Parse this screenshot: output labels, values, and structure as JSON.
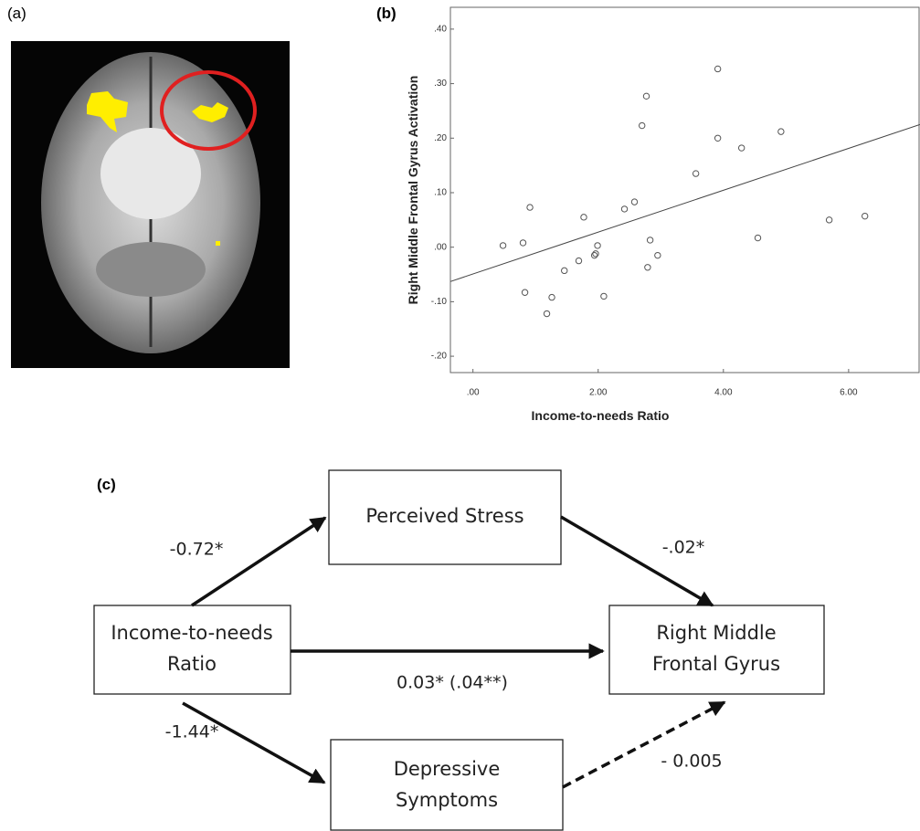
{
  "panel_labels": [
    "(a)",
    "(b)",
    "(c)"
  ],
  "chart_data": {
    "type": "scatter",
    "y_label": "Right Middle Frontal Gyrus Activation",
    "x_label": "Income-to-needs Ratio",
    "x": [
      0.48,
      0.8,
      0.91,
      0.83,
      1.26,
      1.18,
      1.46,
      1.69,
      1.77,
      1.94,
      1.96,
      1.99,
      2.09,
      2.42,
      2.58,
      2.7,
      2.77,
      2.79,
      2.83,
      2.95,
      3.56,
      3.91,
      3.91,
      4.29,
      4.55,
      4.92,
      5.69,
      6.26
    ],
    "values": [
      0.003,
      0.008,
      0.073,
      -0.083,
      -0.092,
      -0.122,
      -0.043,
      -0.025,
      0.055,
      -0.015,
      -0.012,
      0.003,
      -0.09,
      0.07,
      0.083,
      0.223,
      0.277,
      -0.037,
      0.013,
      -0.015,
      0.135,
      0.327,
      0.2,
      0.182,
      0.017,
      0.212,
      0.05,
      0.057
    ],
    "fit": {
      "x": [
        -0.36,
        7.14
      ],
      "values": [
        -0.063,
        0.225
      ]
    },
    "xlim": [
      -0.36,
      7.14
    ],
    "ylim": [
      -0.23,
      0.44
    ],
    "xticks": [
      {
        "value": 0,
        "label": ".00"
      },
      {
        "value": 2,
        "label": "2.00"
      },
      {
        "value": 4,
        "label": "4.00"
      },
      {
        "value": 6,
        "label": "6.00"
      }
    ],
    "yticks": [
      {
        "value": 0.4,
        "label": ".40"
      },
      {
        "value": 0.3,
        "label": ".30"
      },
      {
        "value": 0.2,
        "label": ".20"
      },
      {
        "value": 0.1,
        "label": ".10"
      },
      {
        "value": 0,
        "label": ".00"
      },
      {
        "value": -0.1,
        "label": "-.10"
      },
      {
        "value": -0.2,
        "label": "-.20"
      }
    ],
    "color": "#555555",
    "grid": false
  },
  "diagram": {
    "nodes": [
      {
        "lines": [
          "Perceived Stress"
        ]
      },
      {
        "lines": [
          "Income-to-needs",
          "Ratio"
        ]
      },
      {
        "lines": [
          "Right Middle",
          "Frontal Gyrus"
        ]
      },
      {
        "lines": [
          "Depressive",
          "Symptoms"
        ]
      }
    ],
    "edges": [
      {
        "label": "-0.72*"
      },
      {
        "label": "-.02*"
      },
      {
        "label": "0.03* (.04**)"
      },
      {
        "label": "-1.44*"
      },
      {
        "label": "- 0.005"
      }
    ]
  }
}
